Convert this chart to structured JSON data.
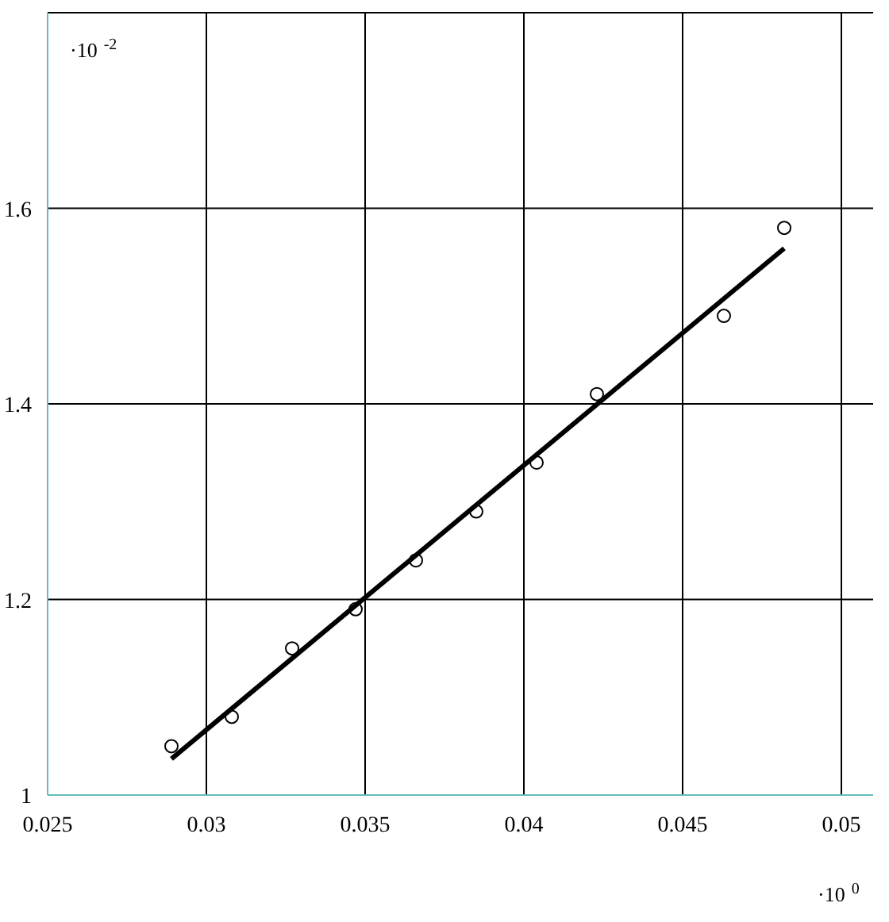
{
  "chart_data": {
    "type": "scatter",
    "x": [
      0.0289,
      0.0308,
      0.0327,
      0.0347,
      0.0366,
      0.0385,
      0.0404,
      0.0423,
      0.0463,
      0.0482
    ],
    "series": [
      {
        "color": "#000000",
        "marker": "circle",
        "values": [
          1.05,
          1.08,
          1.15,
          1.19,
          1.24,
          1.29,
          1.34,
          1.41,
          1.49,
          1.58
        ]
      },
      {
        "type": "line",
        "color": "#000000",
        "x": [
          0.0289,
          0.0482
        ],
        "values": [
          1.037,
          1.559
        ]
      }
    ],
    "xlim": [
      0.025,
      0.051
    ],
    "xticks": [
      0.025,
      0.03,
      0.035,
      0.04,
      0.045,
      0.05
    ],
    "ylim": [
      1,
      1.8
    ],
    "yticks": [
      1,
      1.2,
      1.4,
      1.6,
      {
        "value": 1.8,
        "label": null
      }
    ],
    "grid": true,
    "annotations": [
      "·10$^{-2}$",
      "·10$^{0}$"
    ]
  }
}
